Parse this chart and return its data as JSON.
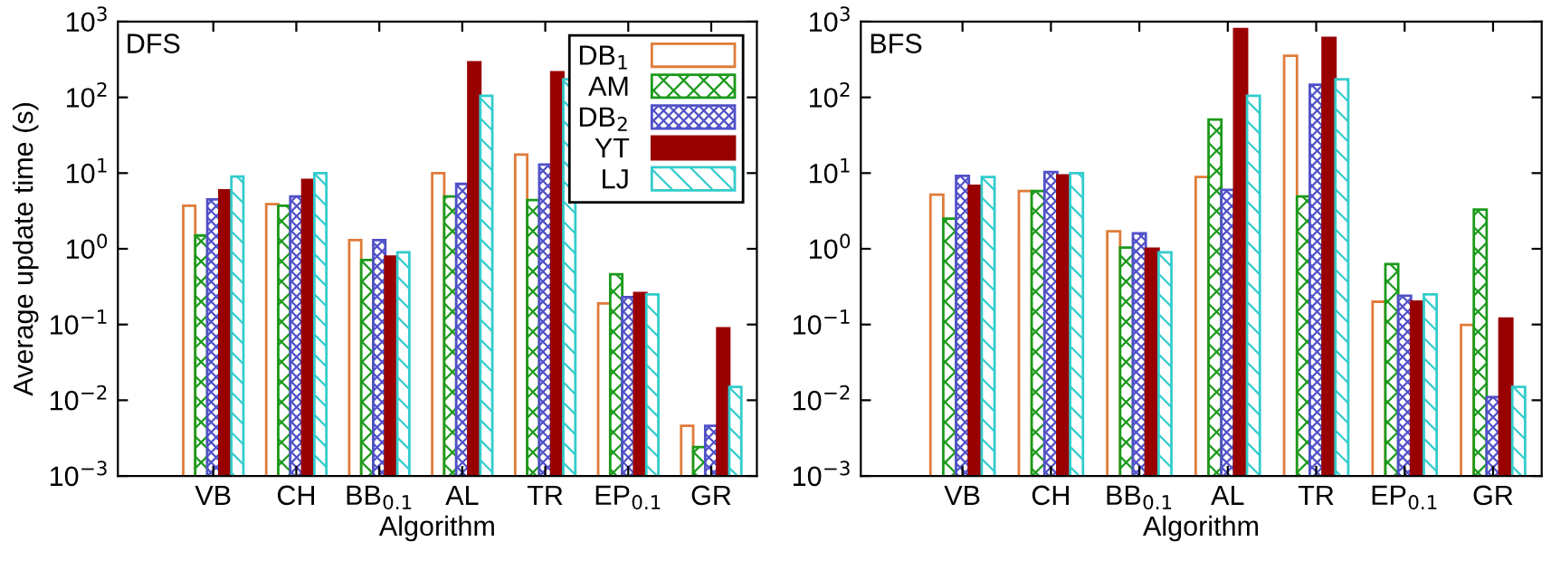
{
  "chart_data": [
    {
      "type": "bar",
      "title": "DFS",
      "xlabel": "Algorithm",
      "ylabel": "Average update time (s)",
      "log": true,
      "legend": "top right",
      "grid": false,
      "categories": [
        "VB",
        "CH",
        "BB$_{0.1}$",
        "AL",
        "TR",
        "EP$_{0.1}$",
        "GR"
      ],
      "ylim": [
        0.001,
        1000
      ],
      "yticks": [
        {
          "value": 0.001,
          "label": "10$^{−3}$"
        },
        {
          "value": 0.01,
          "label": "10$^{−2}$"
        },
        {
          "value": 0.1,
          "label": "10$^{−1}$"
        },
        {
          "value": 1,
          "label": "10$^{0}$"
        },
        {
          "value": 10,
          "label": "10$^{1}$"
        },
        {
          "value": 100,
          "label": "10$^{2}$"
        },
        {
          "value": 1000,
          "label": "10$^{3}$"
        }
      ],
      "series": [
        {
          "name": "DB$_{1}$",
          "color": "#e07b39",
          "values": [
            3.7,
            3.9,
            1.3,
            10,
            17.5,
            0.19,
            0.0046
          ]
        },
        {
          "name": "AM",
          "color": "#1a9a1a",
          "values": [
            1.5,
            3.7,
            0.71,
            4.9,
            4.4,
            0.46,
            0.0024
          ]
        },
        {
          "name": "DB$_{2}$",
          "color": "#5050c8",
          "values": [
            4.5,
            4.9,
            1.3,
            7.2,
            13,
            0.23,
            0.0046
          ]
        },
        {
          "name": "YT",
          "color": "#990000",
          "values": [
            5.9,
            8.1,
            0.79,
            290,
            215,
            0.26,
            0.089
          ]
        },
        {
          "name": "LJ",
          "color": "#33cccc",
          "values": [
            9,
            10,
            0.9,
            105,
            173,
            0.25,
            0.015
          ]
        }
      ]
    },
    {
      "type": "bar",
      "title": "BFS",
      "xlabel": "Algorithm",
      "log": true,
      "legend": false,
      "grid": false,
      "categories": [
        "VB",
        "CH",
        "BB$_{0.1}$",
        "AL",
        "TR",
        "EP$_{0.1}$",
        "GR"
      ],
      "ylim": [
        0.001,
        1000
      ],
      "yticks": [
        {
          "value": 0.001,
          "label": "10$^{−3}$"
        },
        {
          "value": 0.01,
          "label": "10$^{−2}$"
        },
        {
          "value": 0.1,
          "label": "10$^{−1}$"
        },
        {
          "value": 1,
          "label": "10$^{0}$"
        },
        {
          "value": 10,
          "label": "10$^{1}$"
        },
        {
          "value": 100,
          "label": "10$^{2}$"
        },
        {
          "value": 1000,
          "label": "10$^{3}$"
        }
      ],
      "series": [
        {
          "color": "#e07b39",
          "values": [
            5.2,
            5.8,
            1.7,
            8.9,
            355,
            0.2,
            0.099
          ]
        },
        {
          "color": "#1a9a1a",
          "values": [
            2.5,
            5.8,
            1.04,
            51,
            4.9,
            0.63,
            3.3
          ]
        },
        {
          "color": "#5050c8",
          "values": [
            9.2,
            10.3,
            1.6,
            6.0,
            147,
            0.24,
            0.011
          ]
        },
        {
          "color": "#990000",
          "values": [
            6.8,
            9.3,
            1.0,
            800,
            610,
            0.2,
            0.12
          ]
        },
        {
          "color": "#33cccc",
          "values": [
            8.9,
            10,
            0.9,
            105,
            173,
            0.25,
            0.015
          ]
        }
      ]
    }
  ]
}
